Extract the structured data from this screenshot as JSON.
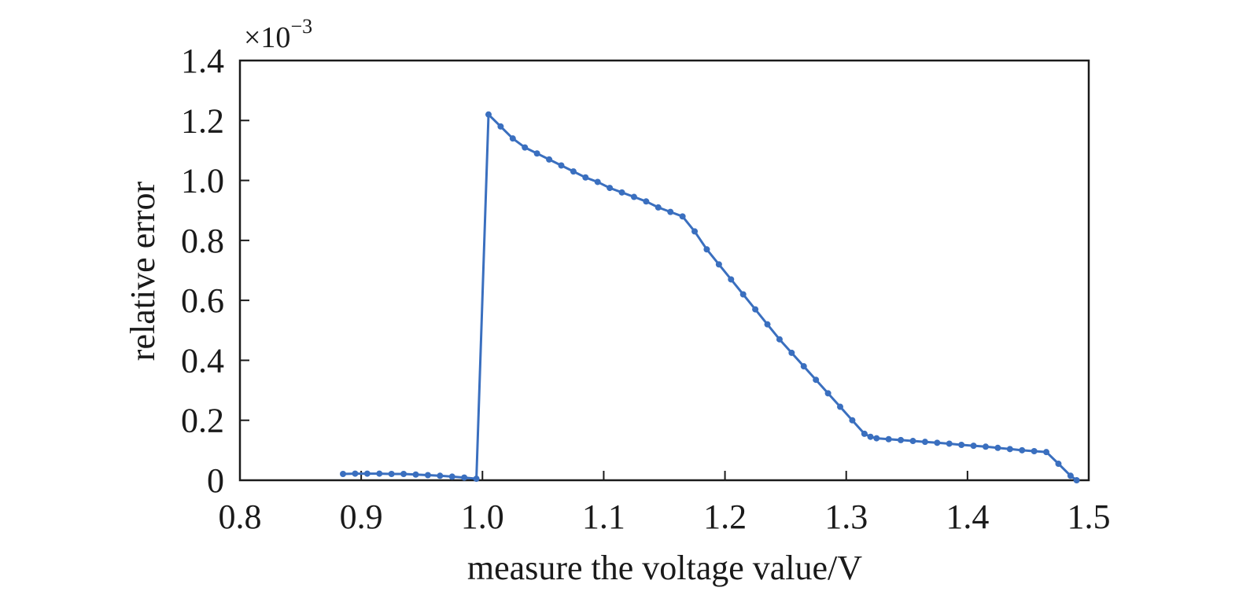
{
  "chart_data": {
    "type": "line",
    "title": "",
    "xlabel": "measure the voltage value/V",
    "ylabel": "relative error",
    "y_multiplier": {
      "base": "×10",
      "exponent": "−3"
    },
    "xlim": [
      0.8,
      1.5
    ],
    "ylim": [
      0,
      1.4
    ],
    "x_ticks": [
      0.8,
      0.9,
      1.0,
      1.1,
      1.2,
      1.3,
      1.4,
      1.5
    ],
    "x_tick_labels": [
      "0.8",
      "0.9",
      "1.0",
      "1.1",
      "1.2",
      "1.3",
      "1.4",
      "1.5"
    ],
    "y_ticks": [
      0,
      0.2,
      0.4,
      0.6,
      0.8,
      1.0,
      1.2,
      1.4
    ],
    "y_tick_labels": [
      "0",
      "0.2",
      "0.4",
      "0.6",
      "0.8",
      "1.0",
      "1.2",
      "1.4"
    ],
    "grid": false,
    "legend": "none",
    "colors": {
      "series": "#3a6fbf",
      "axis": "#1a1a1a"
    },
    "series": [
      {
        "x": [
          0.885,
          0.895,
          0.905,
          0.915,
          0.925,
          0.935,
          0.945,
          0.955,
          0.965,
          0.975,
          0.985,
          0.995,
          1.005,
          1.015,
          1.025,
          1.035,
          1.045,
          1.055,
          1.065,
          1.075,
          1.085,
          1.095,
          1.105,
          1.115,
          1.125,
          1.135,
          1.145,
          1.155,
          1.165,
          1.175,
          1.185,
          1.195,
          1.205,
          1.215,
          1.225,
          1.235,
          1.245,
          1.255,
          1.265,
          1.275,
          1.285,
          1.295,
          1.305,
          1.315,
          1.32,
          1.325,
          1.335,
          1.345,
          1.355,
          1.365,
          1.375,
          1.385,
          1.395,
          1.405,
          1.415,
          1.425,
          1.435,
          1.445,
          1.455,
          1.465,
          1.475,
          1.485,
          1.49
        ],
        "values": [
          0.021,
          0.022,
          0.022,
          0.022,
          0.021,
          0.021,
          0.019,
          0.017,
          0.015,
          0.012,
          0.009,
          0.005,
          1.22,
          1.18,
          1.14,
          1.11,
          1.09,
          1.07,
          1.05,
          1.03,
          1.01,
          0.995,
          0.975,
          0.96,
          0.945,
          0.93,
          0.91,
          0.895,
          0.88,
          0.83,
          0.77,
          0.72,
          0.67,
          0.62,
          0.57,
          0.52,
          0.47,
          0.425,
          0.38,
          0.335,
          0.29,
          0.245,
          0.2,
          0.155,
          0.145,
          0.14,
          0.137,
          0.134,
          0.131,
          0.128,
          0.125,
          0.122,
          0.118,
          0.115,
          0.112,
          0.108,
          0.104,
          0.1,
          0.097,
          0.094,
          0.055,
          0.015,
          0.0
        ]
      }
    ]
  }
}
